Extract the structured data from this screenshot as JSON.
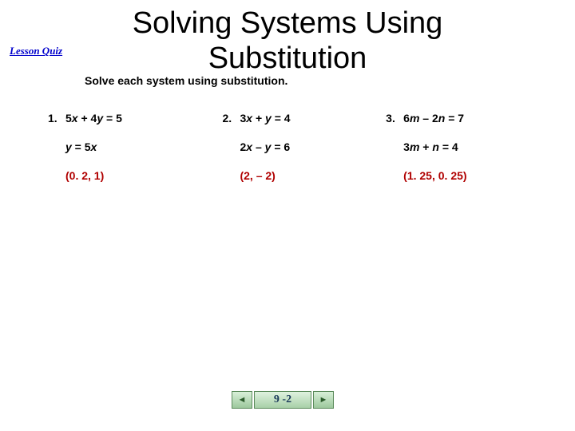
{
  "badge": "Lesson Quiz",
  "title_line1": "Solving Systems Using",
  "title_line2": "Substitution",
  "instruction": "Solve each system using substitution.",
  "problems": [
    {
      "number": "1.",
      "eq1_html": "5<i>x</i> + 4<i>y</i> = 5",
      "eq2_html": "<i>y</i> = 5<i>x</i>",
      "answer": "(0. 2, 1)"
    },
    {
      "number": "2.",
      "eq1_html": "3<i>x</i> + <i>y</i> = 4",
      "eq2_html": "2<i>x</i> – <i>y</i> = 6",
      "answer": "(2, – 2)"
    },
    {
      "number": "3.",
      "eq1_html": "6<i>m</i> – 2<i>n</i> = 7",
      "eq2_html": "3<i>m</i> + <i>n</i> = 4",
      "answer": "(1. 25, 0. 25)"
    }
  ],
  "nav": {
    "prev": "◄",
    "label": "9 -2",
    "next": "►"
  },
  "colors": {
    "answer": "#b00000",
    "badge": "#0000cc",
    "text": "#000000",
    "nav_bg_top": "#dff2df",
    "nav_bg_bottom": "#a8d0a8",
    "nav_border": "#5a8a5a"
  },
  "fonts": {
    "title_size_pt": 29,
    "body_size_pt": 11,
    "badge_family": "Times New Roman"
  }
}
